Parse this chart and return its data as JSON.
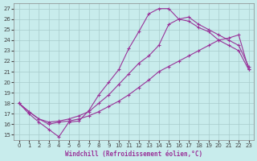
{
  "xlabel": "Windchill (Refroidissement éolien,°C)",
  "bg_color": "#c8ecec",
  "grid_color": "#a8cccc",
  "line_color": "#993399",
  "xlim": [
    -0.5,
    23.5
  ],
  "ylim": [
    14.5,
    27.5
  ],
  "xticks": [
    0,
    1,
    2,
    3,
    4,
    5,
    6,
    7,
    8,
    9,
    10,
    11,
    12,
    13,
    14,
    15,
    16,
    17,
    18,
    19,
    20,
    21,
    22,
    23
  ],
  "yticks": [
    15,
    16,
    17,
    18,
    19,
    20,
    21,
    22,
    23,
    24,
    25,
    26,
    27
  ],
  "curve1_x": [
    0,
    1,
    2,
    3,
    4,
    5,
    6,
    7,
    8,
    9,
    10,
    11,
    12,
    13,
    14,
    15,
    16,
    17,
    18,
    19,
    20,
    21,
    22,
    23
  ],
  "curve1_y": [
    18.0,
    17.0,
    16.2,
    15.5,
    14.8,
    16.2,
    16.3,
    17.3,
    18.8,
    20.0,
    21.2,
    23.2,
    24.8,
    26.5,
    27.0,
    27.0,
    26.0,
    25.8,
    25.2,
    24.8,
    24.0,
    23.5,
    23.0,
    21.2
  ],
  "curve2_x": [
    0,
    1,
    2,
    3,
    4,
    5,
    6,
    7,
    8,
    9,
    10,
    11,
    12,
    13,
    14,
    15,
    16,
    17,
    18,
    19,
    20,
    21,
    22,
    23
  ],
  "curve2_y": [
    18.0,
    17.2,
    16.5,
    16.2,
    16.3,
    16.5,
    16.8,
    17.2,
    18.0,
    18.8,
    19.8,
    20.8,
    21.8,
    22.5,
    23.5,
    25.5,
    26.0,
    26.2,
    25.5,
    25.0,
    24.5,
    24.0,
    23.5,
    21.5
  ],
  "curve3_x": [
    0,
    1,
    2,
    3,
    4,
    5,
    6,
    7,
    8,
    9,
    10,
    11,
    12,
    13,
    14,
    15,
    16,
    17,
    18,
    19,
    20,
    21,
    22,
    23
  ],
  "curve3_y": [
    18.0,
    17.2,
    16.5,
    16.0,
    16.2,
    16.3,
    16.5,
    16.8,
    17.2,
    17.7,
    18.2,
    18.8,
    19.5,
    20.2,
    21.0,
    21.5,
    22.0,
    22.5,
    23.0,
    23.5,
    24.0,
    24.2,
    24.5,
    21.2
  ]
}
